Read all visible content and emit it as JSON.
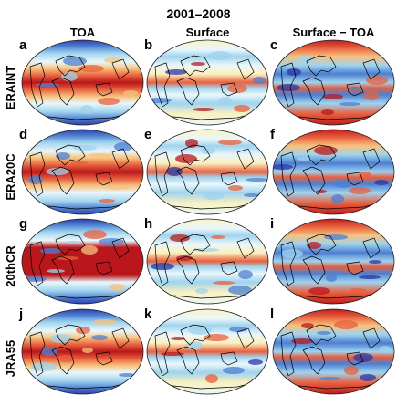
{
  "figure_title": "2001–2008",
  "columns": [
    "TOA",
    "Surface",
    "Surface − TOA"
  ],
  "rows": [
    "ERAINT",
    "ERA20C",
    "20thCR",
    "JRA55"
  ],
  "panel_letters": [
    [
      "a",
      "b",
      "c"
    ],
    [
      "d",
      "e",
      "f"
    ],
    [
      "g",
      "h",
      "i"
    ],
    [
      "j",
      "k",
      "l"
    ]
  ],
  "colormap": {
    "name": "diverging red-yellow-blue",
    "stops": [
      "#2a36a6",
      "#4d7fd1",
      "#9fd3ee",
      "#e9f7fb",
      "#fbf1c0",
      "#f7c27e",
      "#e8603e",
      "#b9171b"
    ]
  },
  "coastline_color": "#000000",
  "projection": "Mollweide"
}
